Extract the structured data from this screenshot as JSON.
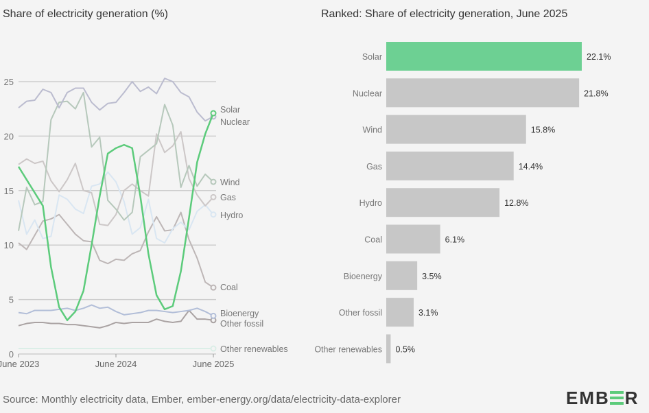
{
  "chart_data": [
    {
      "type": "line",
      "title": "Share of electricity generation (%)",
      "x_tick_labels": [
        "June 2023",
        "June 2024",
        "June 2025"
      ],
      "x_months": 25,
      "ylim": [
        0,
        25
      ],
      "y_ticks": [
        0,
        5,
        10,
        15,
        20,
        25
      ],
      "grid": true,
      "series": [
        {
          "name": "Solar",
          "color": "#5ccb7b",
          "highlight": true,
          "values": [
            17.2,
            16.0,
            14.8,
            13.6,
            8.0,
            4.3,
            3.1,
            3.9,
            5.8,
            10.0,
            14.5,
            18.4,
            18.9,
            19.2,
            18.9,
            14.5,
            9.2,
            5.4,
            4.1,
            4.4,
            7.6,
            12.5,
            17.6,
            20.2,
            22.1
          ]
        },
        {
          "name": "Nuclear",
          "color": "#bbbccf",
          "values": [
            22.6,
            23.2,
            23.3,
            24.3,
            24.0,
            22.6,
            24.0,
            24.4,
            24.4,
            23.1,
            22.4,
            23.0,
            23.1,
            24.0,
            25.0,
            24.1,
            24.5,
            23.9,
            25.3,
            25.0,
            24.0,
            23.6,
            22.2,
            21.4,
            21.8
          ]
        },
        {
          "name": "Wind",
          "color": "#b6c8bb",
          "values": [
            11.3,
            15.3,
            13.7,
            14.0,
            21.5,
            23.1,
            23.2,
            22.5,
            24.0,
            19.0,
            19.9,
            14.1,
            13.3,
            12.3,
            13.0,
            18.1,
            18.7,
            19.3,
            22.9,
            21.0,
            15.3,
            17.3,
            15.4,
            16.5,
            15.8
          ]
        },
        {
          "name": "Gas",
          "color": "#ccc7c7",
          "values": [
            17.4,
            17.9,
            17.5,
            17.7,
            15.9,
            14.9,
            16.0,
            17.5,
            15.0,
            14.8,
            11.9,
            11.8,
            12.8,
            15.0,
            15.6,
            15.0,
            14.5,
            20.2,
            18.5,
            19.1,
            20.4,
            16.1,
            14.6,
            13.6,
            14.4
          ]
        },
        {
          "name": "Hydro",
          "color": "#d9e6f2",
          "values": [
            14.1,
            11.0,
            12.3,
            10.6,
            10.8,
            14.6,
            14.2,
            13.3,
            12.9,
            15.4,
            15.6,
            16.7,
            15.8,
            14.0,
            11.0,
            11.6,
            14.2,
            10.6,
            10.2,
            11.5,
            12.1,
            11.4,
            13.1,
            13.7,
            12.8
          ]
        },
        {
          "name": "Coal",
          "color": "#bdb6b6",
          "values": [
            10.2,
            9.6,
            10.9,
            12.2,
            12.4,
            12.8,
            11.9,
            11.0,
            10.4,
            10.3,
            8.6,
            8.3,
            8.7,
            8.6,
            9.2,
            9.5,
            11.2,
            12.6,
            11.3,
            11.4,
            13.0,
            10.5,
            8.8,
            6.6,
            6.1
          ]
        },
        {
          "name": "Bioenergy",
          "color": "#b2bed8",
          "values": [
            3.8,
            3.7,
            4.0,
            4.0,
            4.0,
            4.1,
            4.2,
            4.0,
            4.2,
            4.5,
            4.2,
            4.3,
            3.9,
            3.6,
            3.7,
            3.8,
            4.0,
            4.0,
            3.9,
            3.8,
            3.9,
            4.0,
            4.2,
            3.9,
            3.5
          ]
        },
        {
          "name": "Other fossil",
          "color": "#aaa3a3",
          "values": [
            2.6,
            2.8,
            2.9,
            2.9,
            2.8,
            2.8,
            2.7,
            2.7,
            2.6,
            2.5,
            2.4,
            2.6,
            2.9,
            2.8,
            2.9,
            2.9,
            2.9,
            3.2,
            3.0,
            2.9,
            3.0,
            4.0,
            3.2,
            3.2,
            3.1
          ]
        },
        {
          "name": "Other renewables",
          "color": "#dbeee7",
          "values": [
            0.5,
            0.5,
            0.5,
            0.5,
            0.5,
            0.5,
            0.5,
            0.5,
            0.5,
            0.5,
            0.5,
            0.5,
            0.5,
            0.5,
            0.5,
            0.5,
            0.5,
            0.5,
            0.5,
            0.5,
            0.5,
            0.5,
            0.5,
            0.5,
            0.5
          ]
        }
      ]
    },
    {
      "type": "bar",
      "orientation": "horizontal",
      "title": "Ranked: Share of electricity generation, June 2025",
      "categories": [
        "Solar",
        "Nuclear",
        "Wind",
        "Gas",
        "Hydro",
        "Coal",
        "Bioenergy",
        "Other fossil",
        "Other renewables"
      ],
      "values": [
        22.1,
        21.8,
        15.8,
        14.4,
        12.8,
        6.1,
        3.5,
        3.1,
        0.5
      ],
      "value_labels": [
        "22.1%",
        "21.8%",
        "15.8%",
        "14.4%",
        "12.8%",
        "6.1%",
        "3.5%",
        "3.1%",
        "0.5%"
      ],
      "highlight_color": "#6dd093",
      "bar_color": "#c7c7c7"
    }
  ],
  "source": "Source: Monthly electricity data, Ember, ember-energy.org/data/electricity-data-explorer",
  "logo": "EMBER"
}
